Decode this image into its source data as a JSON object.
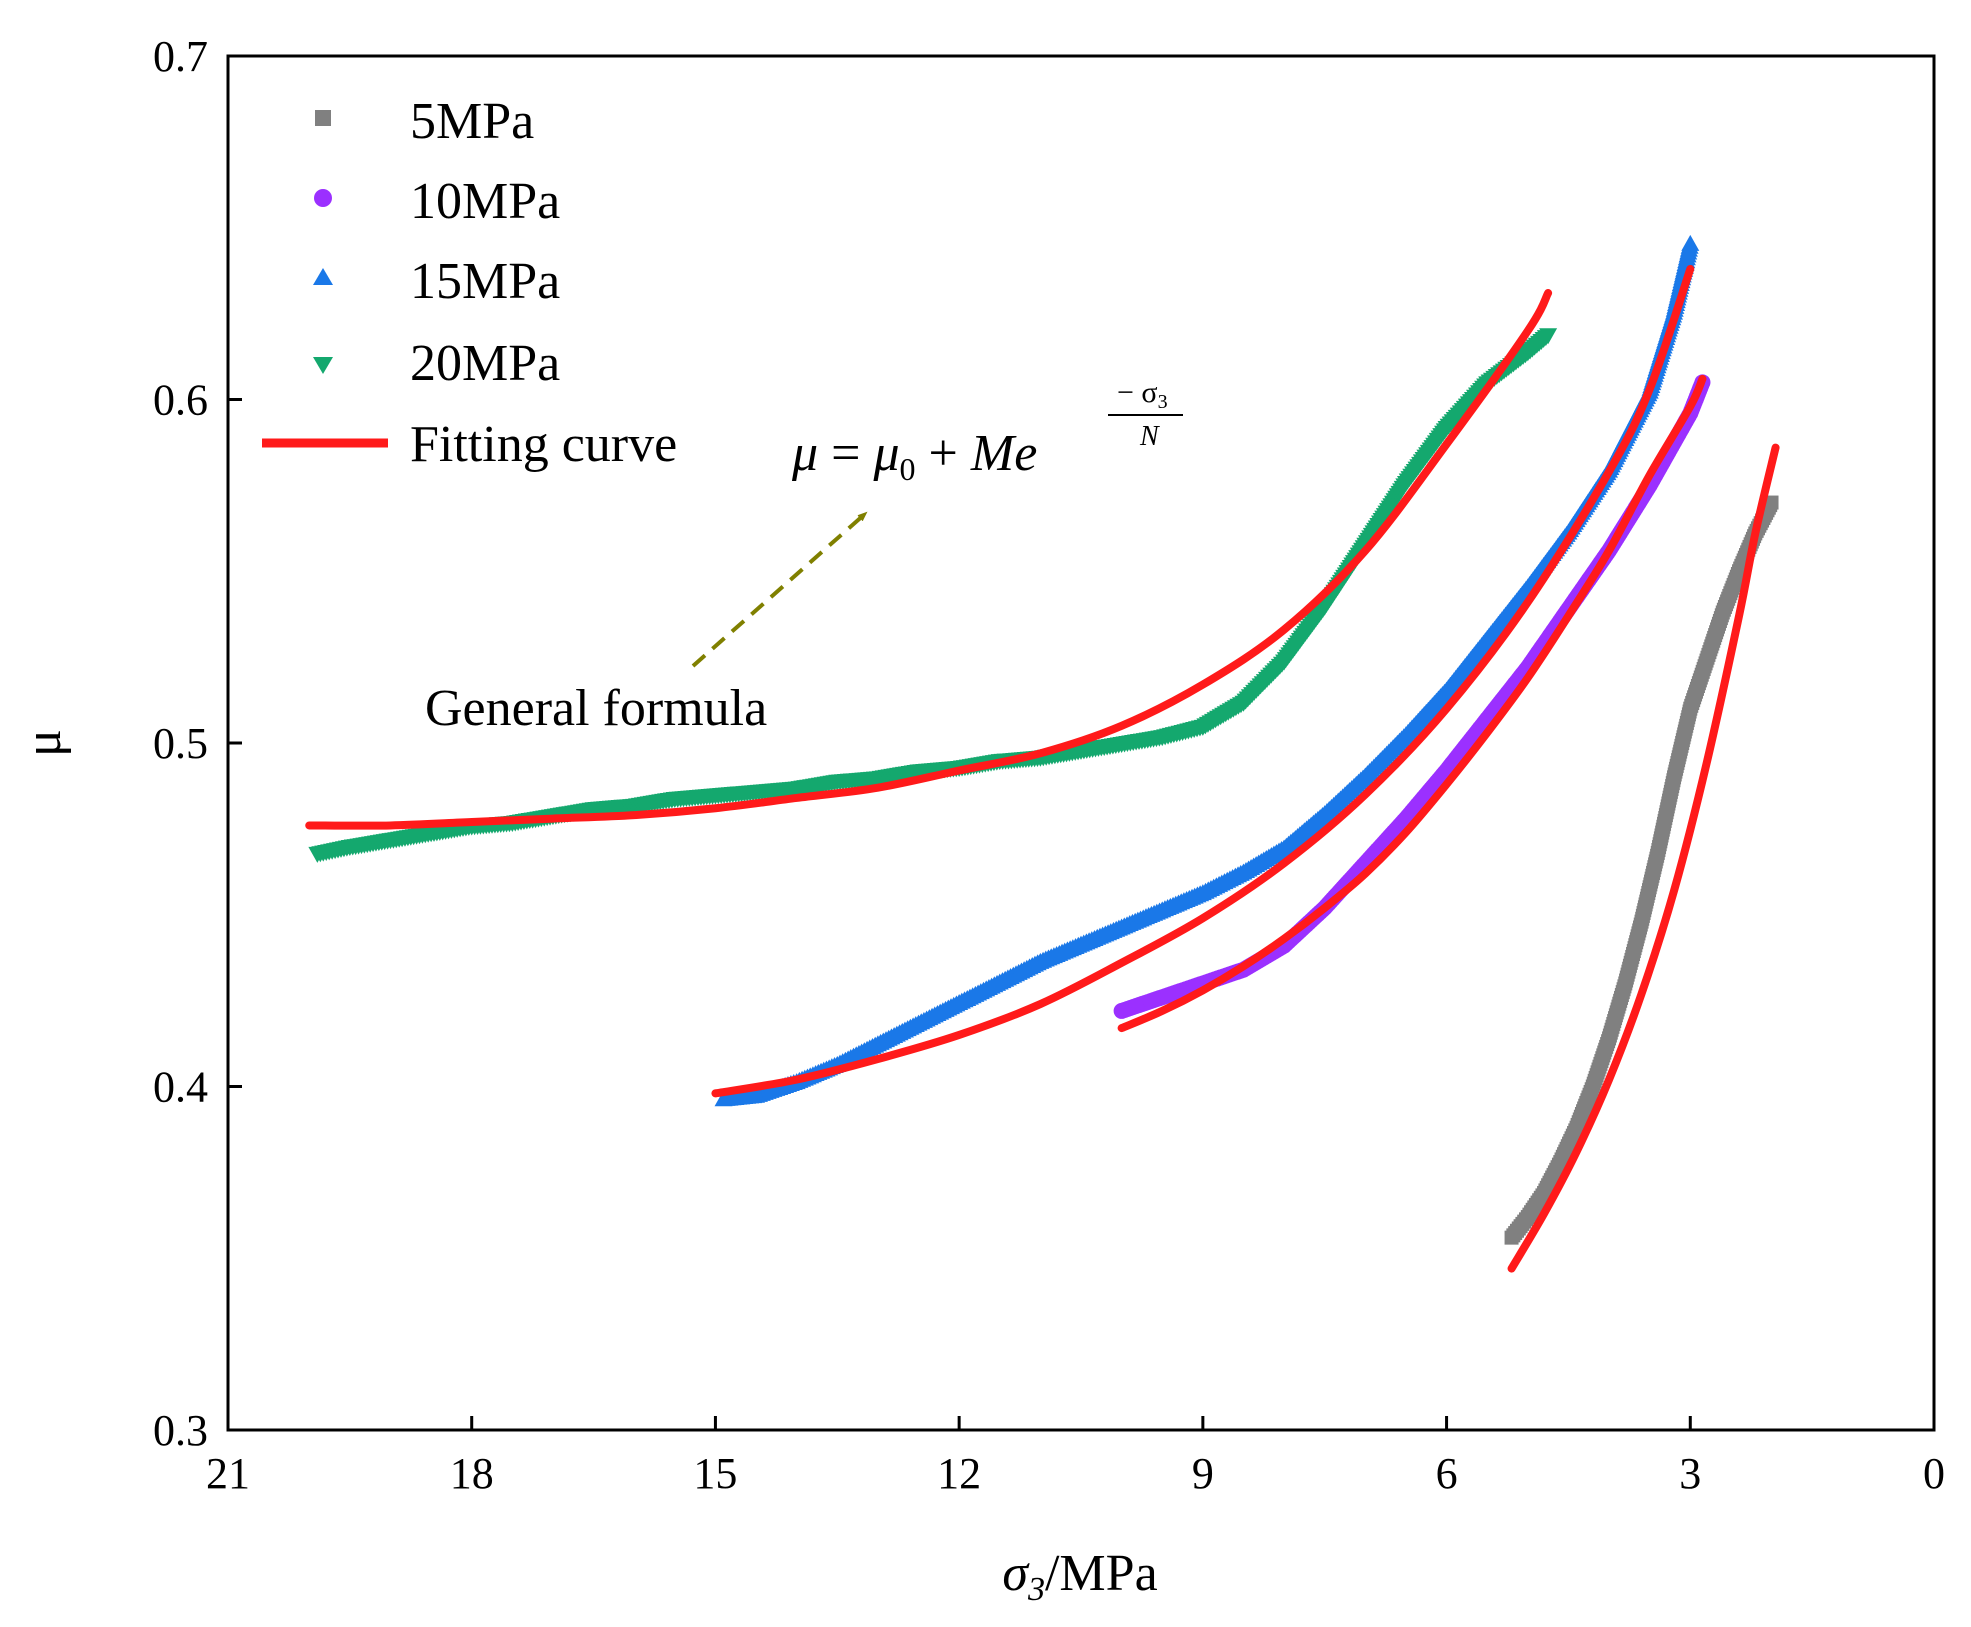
{
  "colors": {
    "5MPa": "#808080",
    "10MPa": "#9b30ff",
    "15MPa": "#1a78e8",
    "20MPa": "#14a86e",
    "fit": "#ff1a1a",
    "arrow": "#808000"
  },
  "chart_data": {
    "type": "scatter",
    "title": "",
    "xlabel_symbol": "σ",
    "xlabel_sub": "3",
    "xlabel_unit": "/MPa",
    "ylabel": "μ",
    "xlim": [
      21,
      0
    ],
    "ylim": [
      0.3,
      0.7
    ],
    "x_ticks": [
      "21",
      "18",
      "15",
      "12",
      "9",
      "6",
      "3",
      "0"
    ],
    "y_ticks": [
      "0.3",
      "0.4",
      "0.5",
      "0.6",
      "0.7"
    ],
    "legend_position": "top-left",
    "series": [
      {
        "name": "5MPa",
        "marker": "square",
        "points": [
          [
            5.2,
            0.356
          ],
          [
            5.0,
            0.362
          ],
          [
            4.8,
            0.369
          ],
          [
            4.6,
            0.378
          ],
          [
            4.4,
            0.388
          ],
          [
            4.2,
            0.4
          ],
          [
            4.0,
            0.414
          ],
          [
            3.8,
            0.43
          ],
          [
            3.6,
            0.448
          ],
          [
            3.4,
            0.468
          ],
          [
            3.2,
            0.49
          ],
          [
            3.0,
            0.51
          ],
          [
            2.8,
            0.524
          ],
          [
            2.6,
            0.538
          ],
          [
            2.4,
            0.55
          ],
          [
            2.2,
            0.561
          ],
          [
            2.0,
            0.57
          ]
        ]
      },
      {
        "name": "10MPa",
        "marker": "circle",
        "points": [
          [
            10.0,
            0.422
          ],
          [
            9.5,
            0.426
          ],
          [
            9.0,
            0.43
          ],
          [
            8.5,
            0.434
          ],
          [
            8.0,
            0.441
          ],
          [
            7.5,
            0.452
          ],
          [
            7.0,
            0.465
          ],
          [
            6.5,
            0.478
          ],
          [
            6.0,
            0.492
          ],
          [
            5.5,
            0.507
          ],
          [
            5.0,
            0.522
          ],
          [
            4.5,
            0.539
          ],
          [
            4.0,
            0.556
          ],
          [
            3.5,
            0.575
          ],
          [
            3.0,
            0.596
          ],
          [
            2.85,
            0.605
          ]
        ]
      },
      {
        "name": "15MPa",
        "marker": "triangle-up",
        "points": [
          [
            14.9,
            0.396
          ],
          [
            14.5,
            0.397
          ],
          [
            14.0,
            0.401
          ],
          [
            13.5,
            0.406
          ],
          [
            13.0,
            0.412
          ],
          [
            12.5,
            0.418
          ],
          [
            12.0,
            0.424
          ],
          [
            11.5,
            0.43
          ],
          [
            11.0,
            0.436
          ],
          [
            10.5,
            0.441
          ],
          [
            10.0,
            0.446
          ],
          [
            9.5,
            0.451
          ],
          [
            9.0,
            0.456
          ],
          [
            8.5,
            0.462
          ],
          [
            8.0,
            0.469
          ],
          [
            7.5,
            0.479
          ],
          [
            7.0,
            0.49
          ],
          [
            6.5,
            0.502
          ],
          [
            6.0,
            0.515
          ],
          [
            5.5,
            0.53
          ],
          [
            5.0,
            0.545
          ],
          [
            4.5,
            0.561
          ],
          [
            4.0,
            0.579
          ],
          [
            3.5,
            0.602
          ],
          [
            3.2,
            0.625
          ],
          [
            3.0,
            0.645
          ]
        ]
      },
      {
        "name": "20MPa",
        "marker": "triangle-down",
        "points": [
          [
            19.9,
            0.468
          ],
          [
            19.5,
            0.47
          ],
          [
            19.0,
            0.472
          ],
          [
            18.5,
            0.474
          ],
          [
            18.0,
            0.476
          ],
          [
            17.5,
            0.477
          ],
          [
            17.0,
            0.479
          ],
          [
            16.5,
            0.481
          ],
          [
            16.0,
            0.482
          ],
          [
            15.5,
            0.484
          ],
          [
            15.0,
            0.485
          ],
          [
            14.5,
            0.486
          ],
          [
            14.0,
            0.487
          ],
          [
            13.5,
            0.489
          ],
          [
            13.0,
            0.49
          ],
          [
            12.5,
            0.492
          ],
          [
            12.0,
            0.493
          ],
          [
            11.5,
            0.495
          ],
          [
            11.0,
            0.496
          ],
          [
            10.5,
            0.498
          ],
          [
            10.0,
            0.5
          ],
          [
            9.5,
            0.502
          ],
          [
            9.0,
            0.505
          ],
          [
            8.5,
            0.512
          ],
          [
            8.0,
            0.524
          ],
          [
            7.5,
            0.54
          ],
          [
            7.0,
            0.558
          ],
          [
            6.5,
            0.576
          ],
          [
            6.0,
            0.592
          ],
          [
            5.5,
            0.605
          ],
          [
            5.0,
            0.614
          ],
          [
            4.75,
            0.619
          ]
        ]
      }
    ],
    "fits": [
      {
        "name": "fit-5MPa",
        "points": [
          [
            5.2,
            0.347
          ],
          [
            4.8,
            0.363
          ],
          [
            4.4,
            0.381
          ],
          [
            4.0,
            0.402
          ],
          [
            3.6,
            0.427
          ],
          [
            3.2,
            0.457
          ],
          [
            2.8,
            0.494
          ],
          [
            2.4,
            0.537
          ],
          [
            2.2,
            0.561
          ],
          [
            1.95,
            0.586
          ]
        ]
      },
      {
        "name": "fit-10MPa",
        "points": [
          [
            10.0,
            0.417
          ],
          [
            9.5,
            0.422
          ],
          [
            9.0,
            0.428
          ],
          [
            8.5,
            0.435
          ],
          [
            8.0,
            0.443
          ],
          [
            7.5,
            0.452
          ],
          [
            7.0,
            0.462
          ],
          [
            6.5,
            0.474
          ],
          [
            6.0,
            0.488
          ],
          [
            5.5,
            0.503
          ],
          [
            5.0,
            0.519
          ],
          [
            4.5,
            0.537
          ],
          [
            4.0,
            0.556
          ],
          [
            3.5,
            0.578
          ],
          [
            3.0,
            0.598
          ],
          [
            2.85,
            0.606
          ]
        ]
      },
      {
        "name": "fit-15MPa",
        "points": [
          [
            15.0,
            0.398
          ],
          [
            14.0,
            0.402
          ],
          [
            13.0,
            0.408
          ],
          [
            12.0,
            0.415
          ],
          [
            11.0,
            0.424
          ],
          [
            10.0,
            0.436
          ],
          [
            9.0,
            0.449
          ],
          [
            8.0,
            0.465
          ],
          [
            7.0,
            0.485
          ],
          [
            6.0,
            0.51
          ],
          [
            5.0,
            0.541
          ],
          [
            4.0,
            0.579
          ],
          [
            3.5,
            0.603
          ],
          [
            3.0,
            0.638
          ]
        ]
      },
      {
        "name": "fit-20MPa",
        "points": [
          [
            20.0,
            0.476
          ],
          [
            19.0,
            0.476
          ],
          [
            18.0,
            0.477
          ],
          [
            17.0,
            0.478
          ],
          [
            16.0,
            0.479
          ],
          [
            15.0,
            0.481
          ],
          [
            14.0,
            0.484
          ],
          [
            13.0,
            0.487
          ],
          [
            12.0,
            0.492
          ],
          [
            11.0,
            0.497
          ],
          [
            10.0,
            0.505
          ],
          [
            9.0,
            0.517
          ],
          [
            8.0,
            0.533
          ],
          [
            7.0,
            0.556
          ],
          [
            6.0,
            0.587
          ],
          [
            5.0,
            0.62
          ],
          [
            4.75,
            0.631
          ]
        ]
      }
    ],
    "legend": [
      "5MPa",
      "10MPa",
      "15MPa",
      "20MPa",
      "Fitting curve"
    ],
    "annotation": {
      "formula_mu": "μ",
      "formula_eq": " = ",
      "formula_mu0": "μ",
      "formula_mu0_sub": "0",
      "formula_plus": " + ",
      "formula_Me": "Me",
      "formula_exp_num": "− σ",
      "formula_exp_num_sub": "3",
      "formula_exp_den": "N",
      "general_label": "General formula"
    }
  }
}
